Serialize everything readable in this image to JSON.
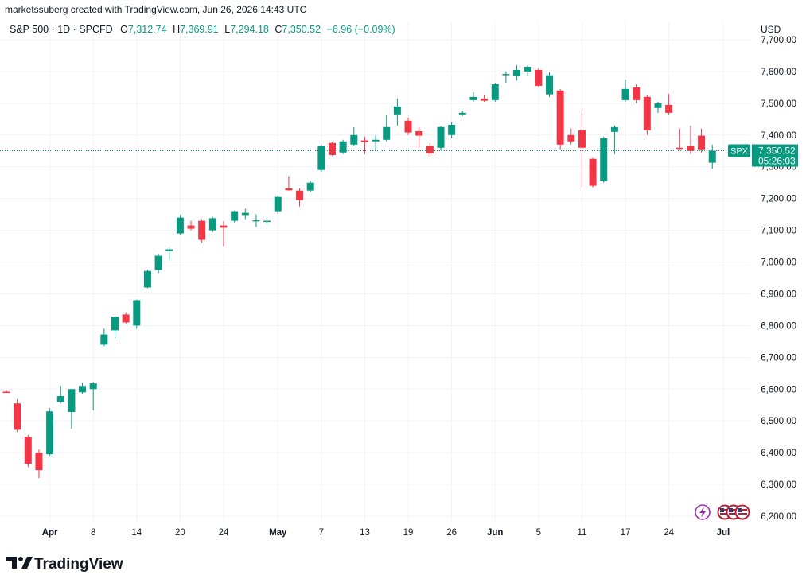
{
  "header": {
    "credit": "marketssuberg created with TradingView.com, Jun 26, 2026 14:43 UTC",
    "symbol": "S&P 500 · 1D · SPCFD",
    "ohlc": {
      "o_label": "O",
      "o": "7,312.74",
      "h_label": "H",
      "h": "7,369.91",
      "l_label": "L",
      "l": "7,294.18",
      "c_label": "C",
      "c": "7,350.52",
      "change": "−6.96 (−0.09%)"
    }
  },
  "currency": "USD",
  "price_tag": {
    "symbol": "SPX",
    "price": "7,350.52",
    "countdown": "05:26:03"
  },
  "brand": {
    "name": "TradingView"
  },
  "colors": {
    "up": "#089981",
    "down": "#f23645",
    "grid": "#f0f3fa",
    "text": "#131722"
  },
  "chart_data": {
    "type": "candlestick",
    "y_axis": {
      "min": 6175,
      "max": 7740,
      "ticks": [
        6200,
        6300,
        6400,
        6500,
        6600,
        6700,
        6800,
        6900,
        7000,
        7100,
        7200,
        7300,
        7400,
        7500,
        7600,
        7700
      ],
      "tick_labels": [
        "6,200.00",
        "6,300.00",
        "6,400.00",
        "6,500.00",
        "6,600.00",
        "6,700.00",
        "6,800.00",
        "6,900.00",
        "7,000.00",
        "7,100.00",
        "7,200.00",
        "7,300.00",
        "7,400.00",
        "7,500.00",
        "7,600.00",
        "7,700.00"
      ],
      "position": "right"
    },
    "x_axis": {
      "labels": [
        {
          "text": "Apr",
          "bar": 4,
          "bold": true
        },
        {
          "text": "8",
          "bar": 8
        },
        {
          "text": "14",
          "bar": 12
        },
        {
          "text": "20",
          "bar": 16
        },
        {
          "text": "24",
          "bar": 20
        },
        {
          "text": "May",
          "bar": 25,
          "bold": true
        },
        {
          "text": "7",
          "bar": 29
        },
        {
          "text": "13",
          "bar": 33
        },
        {
          "text": "19",
          "bar": 37
        },
        {
          "text": "26",
          "bar": 41
        },
        {
          "text": "Jun",
          "bar": 45,
          "bold": true
        },
        {
          "text": "5",
          "bar": 49
        },
        {
          "text": "11",
          "bar": 53
        },
        {
          "text": "17",
          "bar": 57
        },
        {
          "text": "24",
          "bar": 61
        },
        {
          "text": "Jul",
          "bar": 66,
          "bold": true
        }
      ]
    },
    "last_price": 7350.52,
    "candles": [
      {
        "o": 6592,
        "h": 6596,
        "l": 6588,
        "c": 6590
      },
      {
        "o": 6555,
        "h": 6568,
        "l": 6465,
        "c": 6472
      },
      {
        "o": 6450,
        "h": 6455,
        "l": 6355,
        "c": 6365
      },
      {
        "o": 6400,
        "h": 6410,
        "l": 6320,
        "c": 6345
      },
      {
        "o": 6395,
        "h": 6540,
        "l": 6390,
        "c": 6530
      },
      {
        "o": 6560,
        "h": 6610,
        "l": 6555,
        "c": 6578
      },
      {
        "o": 6528,
        "h": 6600,
        "l": 6475,
        "c": 6600
      },
      {
        "o": 6590,
        "h": 6620,
        "l": 6585,
        "c": 6610
      },
      {
        "o": 6600,
        "h": 6622,
        "l": 6533,
        "c": 6618
      },
      {
        "o": 6740,
        "h": 6790,
        "l": 6735,
        "c": 6772
      },
      {
        "o": 6785,
        "h": 6830,
        "l": 6760,
        "c": 6828
      },
      {
        "o": 6835,
        "h": 6842,
        "l": 6805,
        "c": 6810
      },
      {
        "o": 6800,
        "h": 6882,
        "l": 6790,
        "c": 6880
      },
      {
        "o": 6920,
        "h": 6975,
        "l": 6918,
        "c": 6972
      },
      {
        "o": 6975,
        "h": 7025,
        "l": 6965,
        "c": 7020
      },
      {
        "o": 7035,
        "h": 7045,
        "l": 7005,
        "c": 7040
      },
      {
        "o": 7090,
        "h": 7148,
        "l": 7085,
        "c": 7140
      },
      {
        "o": 7115,
        "h": 7130,
        "l": 7100,
        "c": 7105
      },
      {
        "o": 7130,
        "h": 7135,
        "l": 7060,
        "c": 7070
      },
      {
        "o": 7100,
        "h": 7142,
        "l": 7095,
        "c": 7138
      },
      {
        "o": 7115,
        "h": 7128,
        "l": 7050,
        "c": 7108
      },
      {
        "o": 7130,
        "h": 7162,
        "l": 7125,
        "c": 7160
      },
      {
        "o": 7148,
        "h": 7168,
        "l": 7135,
        "c": 7155
      },
      {
        "o": 7130,
        "h": 7150,
        "l": 7110,
        "c": 7132
      },
      {
        "o": 7128,
        "h": 7140,
        "l": 7115,
        "c": 7130
      },
      {
        "o": 7160,
        "h": 7210,
        "l": 7150,
        "c": 7205
      },
      {
        "o": 7232,
        "h": 7270,
        "l": 7225,
        "c": 7226
      },
      {
        "o": 7225,
        "h": 7232,
        "l": 7175,
        "c": 7195
      },
      {
        "o": 7225,
        "h": 7255,
        "l": 7220,
        "c": 7250
      },
      {
        "o": 7290,
        "h": 7370,
        "l": 7285,
        "c": 7365
      },
      {
        "o": 7375,
        "h": 7378,
        "l": 7335,
        "c": 7337
      },
      {
        "o": 7345,
        "h": 7385,
        "l": 7340,
        "c": 7380
      },
      {
        "o": 7370,
        "h": 7425,
        "l": 7365,
        "c": 7400
      },
      {
        "o": 7383,
        "h": 7395,
        "l": 7340,
        "c": 7378
      },
      {
        "o": 7380,
        "h": 7400,
        "l": 7350,
        "c": 7385
      },
      {
        "o": 7385,
        "h": 7465,
        "l": 7380,
        "c": 7425
      },
      {
        "o": 7465,
        "h": 7515,
        "l": 7430,
        "c": 7490
      },
      {
        "o": 7445,
        "h": 7455,
        "l": 7400,
        "c": 7408
      },
      {
        "o": 7412,
        "h": 7425,
        "l": 7360,
        "c": 7398
      },
      {
        "o": 7365,
        "h": 7375,
        "l": 7330,
        "c": 7342
      },
      {
        "o": 7360,
        "h": 7428,
        "l": 7350,
        "c": 7425
      },
      {
        "o": 7400,
        "h": 7440,
        "l": 7390,
        "c": 7432
      },
      {
        "o": 7465,
        "h": 7475,
        "l": 7460,
        "c": 7470
      },
      {
        "o": 7510,
        "h": 7535,
        "l": 7505,
        "c": 7520
      },
      {
        "o": 7515,
        "h": 7525,
        "l": 7505,
        "c": 7508
      },
      {
        "o": 7510,
        "h": 7565,
        "l": 7505,
        "c": 7560
      },
      {
        "o": 7590,
        "h": 7600,
        "l": 7565,
        "c": 7592
      },
      {
        "o": 7585,
        "h": 7620,
        "l": 7572,
        "c": 7605
      },
      {
        "o": 7600,
        "h": 7620,
        "l": 7585,
        "c": 7615
      },
      {
        "o": 7605,
        "h": 7610,
        "l": 7550,
        "c": 7555
      },
      {
        "o": 7528,
        "h": 7598,
        "l": 7520,
        "c": 7588
      },
      {
        "o": 7540,
        "h": 7545,
        "l": 7355,
        "c": 7370
      },
      {
        "o": 7400,
        "h": 7420,
        "l": 7370,
        "c": 7380
      },
      {
        "o": 7415,
        "h": 7480,
        "l": 7235,
        "c": 7360
      },
      {
        "o": 7325,
        "h": 7328,
        "l": 7235,
        "c": 7240
      },
      {
        "o": 7255,
        "h": 7395,
        "l": 7250,
        "c": 7390
      },
      {
        "o": 7410,
        "h": 7430,
        "l": 7340,
        "c": 7425
      },
      {
        "o": 7510,
        "h": 7575,
        "l": 7505,
        "c": 7545
      },
      {
        "o": 7550,
        "h": 7560,
        "l": 7500,
        "c": 7510
      },
      {
        "o": 7520,
        "h": 7525,
        "l": 7400,
        "c": 7415
      },
      {
        "o": 7485,
        "h": 7505,
        "l": 7470,
        "c": 7500
      },
      {
        "o": 7495,
        "h": 7530,
        "l": 7465,
        "c": 7470
      },
      {
        "o": 7360,
        "h": 7420,
        "l": 7355,
        "c": 7358
      },
      {
        "o": 7365,
        "h": 7430,
        "l": 7340,
        "c": 7350
      },
      {
        "o": 7398,
        "h": 7420,
        "l": 7345,
        "c": 7355
      },
      {
        "o": 7312.74,
        "h": 7369.91,
        "l": 7294.18,
        "c": 7350.52
      }
    ]
  }
}
